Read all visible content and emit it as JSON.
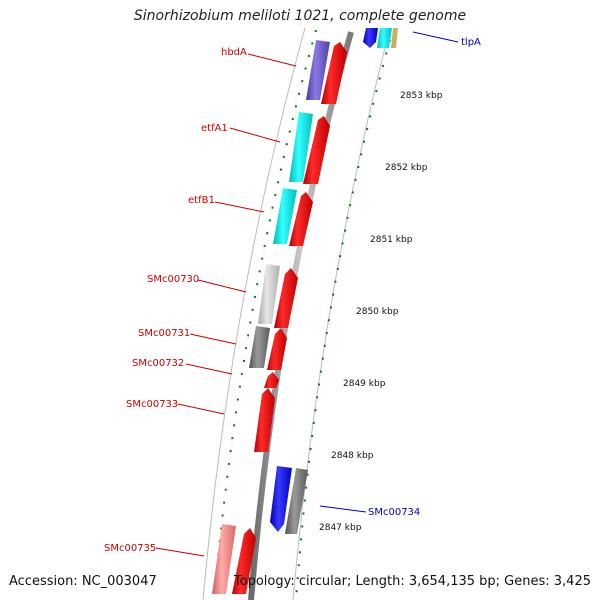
{
  "header": {
    "title": "Sinorhizobium meliloti 1021, complete genome"
  },
  "footer": {
    "accession": "Accession: NC_003047",
    "topology": "Topology: circular; Length: 3,654,135 bp; Genes: 3,425"
  },
  "ruler": {
    "labels": [
      "2853 kbp",
      "2852 kbp",
      "2851 kbp",
      "2850 kbp",
      "2849 kbp",
      "2848 kbp",
      "2847 kbp"
    ]
  },
  "genes": [
    {
      "name": "hbdA",
      "color": "#d40000"
    },
    {
      "name": "etfA1",
      "color": "#d40000"
    },
    {
      "name": "etfB1",
      "color": "#d40000"
    },
    {
      "name": "SMc00730",
      "color": "#d40000"
    },
    {
      "name": "SMc00731",
      "color": "#d40000"
    },
    {
      "name": "SMc00732",
      "color": "#d40000"
    },
    {
      "name": "SMc00733",
      "color": "#d40000"
    },
    {
      "name": "SMc00735",
      "color": "#d40000"
    },
    {
      "name": "tlpA",
      "color": "#0000cc"
    },
    {
      "name": "SMc00734",
      "color": "#0000cc"
    }
  ],
  "colors": {
    "forward": "#ff0000",
    "reverse_blue": "#0000ff",
    "cyan": "#00e5e5",
    "purple": "#6a5acd",
    "grey": "#808080",
    "light_grey": "#c0c0c0",
    "pink": "#f08080",
    "tick_green": "#0a7a0a"
  }
}
